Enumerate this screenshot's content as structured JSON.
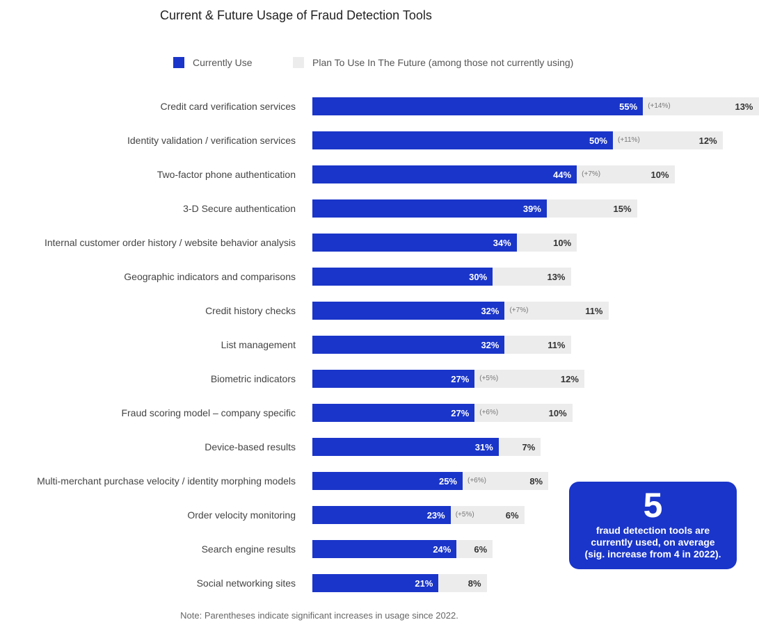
{
  "colors": {
    "current": "#1a35c9",
    "future": "#ececec",
    "callout": "#1a35c9"
  },
  "chart_data": {
    "type": "bar",
    "orientation": "horizontal",
    "stacked": true,
    "title": "Current & Future Usage of Fraud Detection Tools",
    "legend": {
      "position": "top",
      "items": [
        "Currently Use",
        "Plan To Use In The Future (among those not currently using)"
      ]
    },
    "categories": [
      "Credit card verification services",
      "Identity validation / verification services",
      "Two-factor phone authentication",
      "3-D Secure authentication",
      "Internal customer order history / website behavior analysis",
      "Geographic indicators and comparisons",
      "Credit history checks",
      "List management",
      "Biometric indicators",
      "Fraud scoring model – company specific",
      "Device-based results",
      "Multi-merchant purchase velocity / identity morphing models",
      "Order velocity monitoring",
      "Search engine results",
      "Social networking sites"
    ],
    "series": [
      {
        "name": "Currently Use",
        "values": [
          55,
          50,
          44,
          39,
          34,
          30,
          32,
          32,
          27,
          27,
          31,
          25,
          23,
          24,
          21
        ],
        "labels": [
          "55%",
          "50%",
          "44%",
          "39%",
          "34%",
          "30%",
          "32%",
          "32%",
          "27%",
          "27%",
          "31%",
          "25%",
          "23%",
          "24%",
          "21%"
        ]
      },
      {
        "name": "Plan To Use In The Future (among those not currently using)",
        "values": [
          13,
          12,
          10,
          15,
          10,
          13,
          11,
          11,
          12,
          10,
          7,
          8,
          6,
          6,
          8
        ],
        "labels": [
          "13%",
          "12%",
          "10%",
          "15%",
          "10%",
          "13%",
          "11%",
          "11%",
          "12%",
          "10%",
          "7%",
          "8%",
          "6%",
          "6%",
          "8%"
        ]
      }
    ],
    "increases": [
      "(+14%)",
      "(+11%)",
      "(+7%)",
      "",
      "",
      "",
      "(+7%)",
      "",
      "(+5%)",
      "(+6%)",
      "",
      "(+6%)",
      "(+5%)",
      "",
      ""
    ],
    "note": "Note: Parentheses indicate significant increases in usage since 2022."
  },
  "callout": {
    "number": "5",
    "text_line1": "fraud detection tools are",
    "text_line2": "currently used, on average",
    "text_line3": "(sig. increase from 4 in 2022)."
  }
}
